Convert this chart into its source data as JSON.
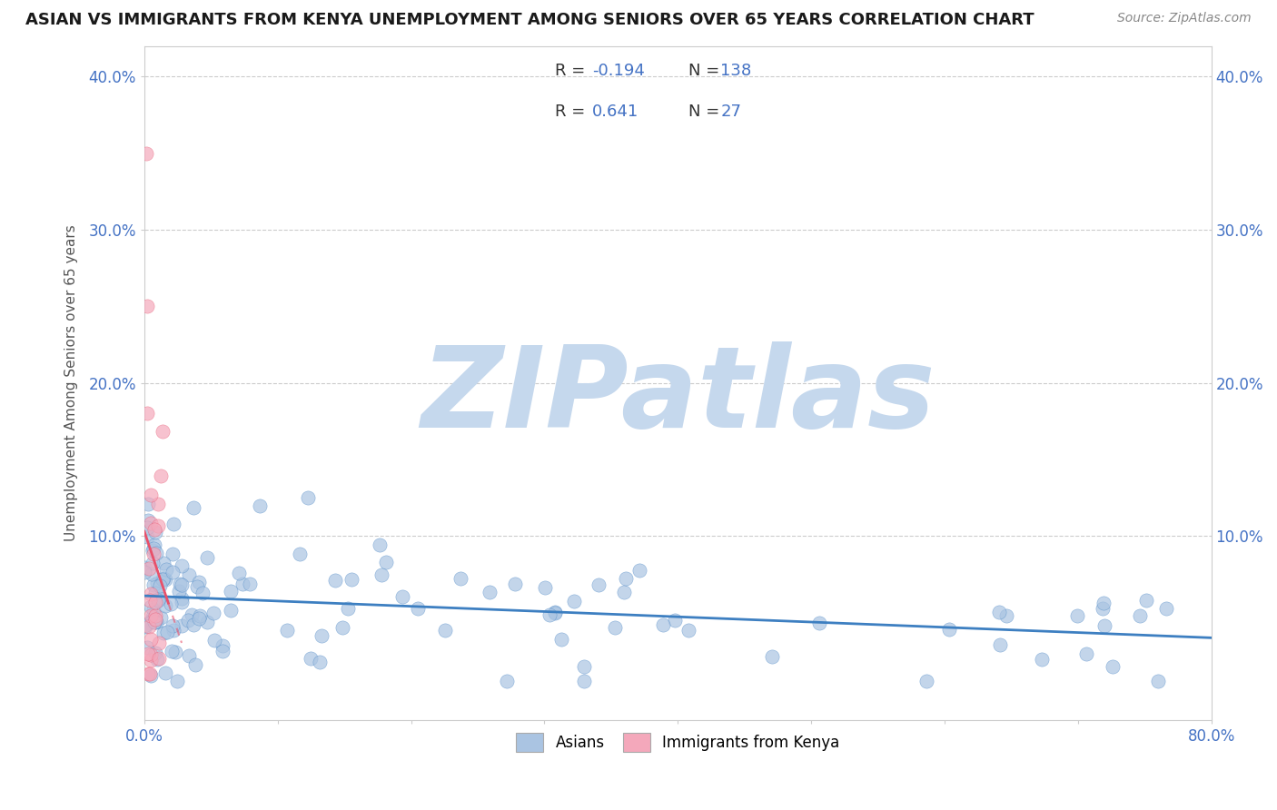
{
  "title": "ASIAN VS IMMIGRANTS FROM KENYA UNEMPLOYMENT AMONG SENIORS OVER 65 YEARS CORRELATION CHART",
  "source": "Source: ZipAtlas.com",
  "ylabel": "Unemployment Among Seniors over 65 years",
  "xlim": [
    0.0,
    0.8
  ],
  "ylim": [
    -0.02,
    0.42
  ],
  "xtick_positions": [
    0.0,
    0.1,
    0.2,
    0.3,
    0.4,
    0.5,
    0.6,
    0.7,
    0.8
  ],
  "xtick_labels": [
    "0.0%",
    "",
    "",
    "",
    "",
    "",
    "",
    "",
    "80.0%"
  ],
  "ytick_positions": [
    0.1,
    0.2,
    0.3,
    0.4
  ],
  "ytick_labels": [
    "10.0%",
    "20.0%",
    "30.0%",
    "40.0%"
  ],
  "asian_color": "#aac4e2",
  "kenya_color": "#f4a8bb",
  "asian_line_color": "#3d7fc1",
  "kenya_line_color": "#e8506a",
  "legend_text_color": "#4472c4",
  "watermark": "ZIPatlas",
  "watermark_color": "#c5d8ed",
  "background_color": "#ffffff",
  "grid_color": "#cccccc",
  "asian_seed": 123,
  "kenya_seed": 456
}
